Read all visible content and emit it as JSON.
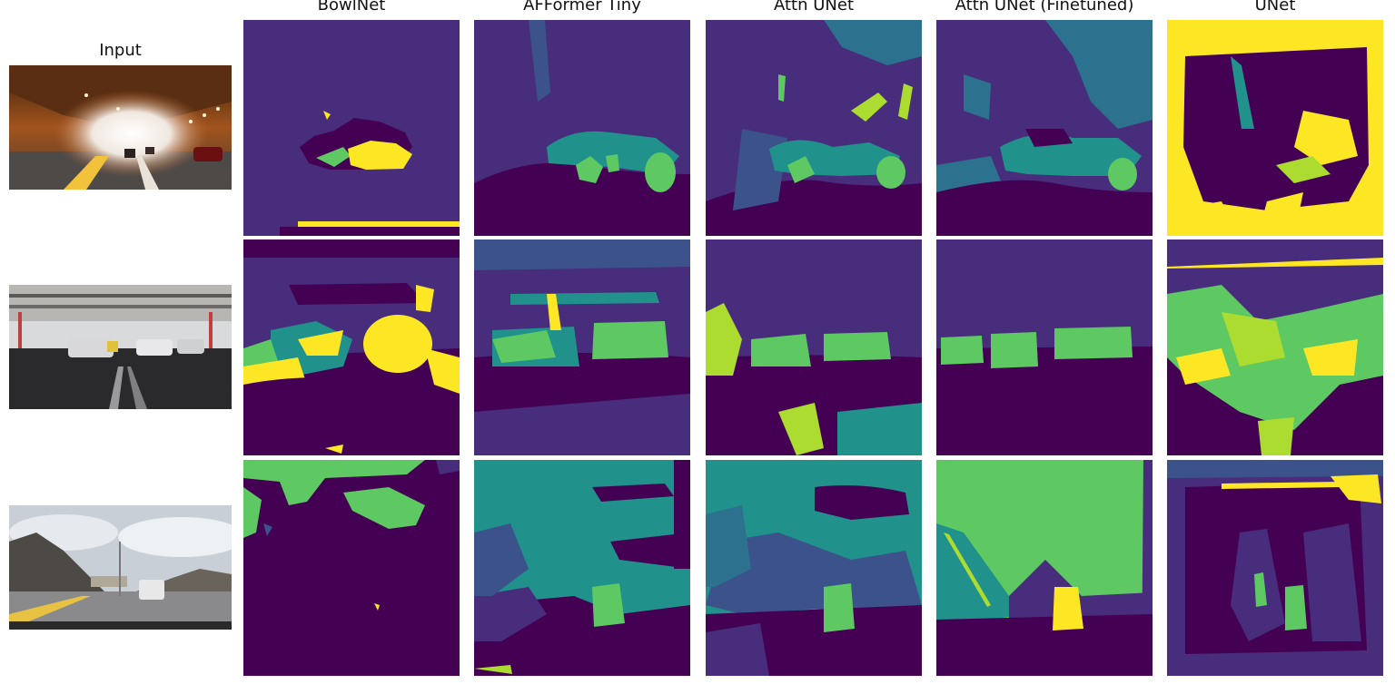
{
  "figure": {
    "input_title": "Input",
    "columns": [
      {
        "id": "bowlnet",
        "title": "BowlNet"
      },
      {
        "id": "afformer-tiny",
        "title": "AFFormer Tiny"
      },
      {
        "id": "attn-unet",
        "title": "Attn UNet"
      },
      {
        "id": "attn-unet-finetuned",
        "title": "Attn UNet (Finetuned)"
      },
      {
        "id": "unet",
        "title": "UNet"
      }
    ],
    "rows": [
      {
        "id": "tunnel",
        "scene": "tunnel road"
      },
      {
        "id": "parking",
        "scene": "covered parking lot"
      },
      {
        "id": "mountain",
        "scene": "mountain highway"
      }
    ],
    "palette": {
      "c0": "#440154",
      "c1": "#472d7b",
      "c2": "#3b528b",
      "c3": "#2c728e",
      "c4": "#21918c",
      "c5": "#28ae80",
      "c6": "#5ec962",
      "c7": "#addc30",
      "c8": "#fde725"
    }
  }
}
